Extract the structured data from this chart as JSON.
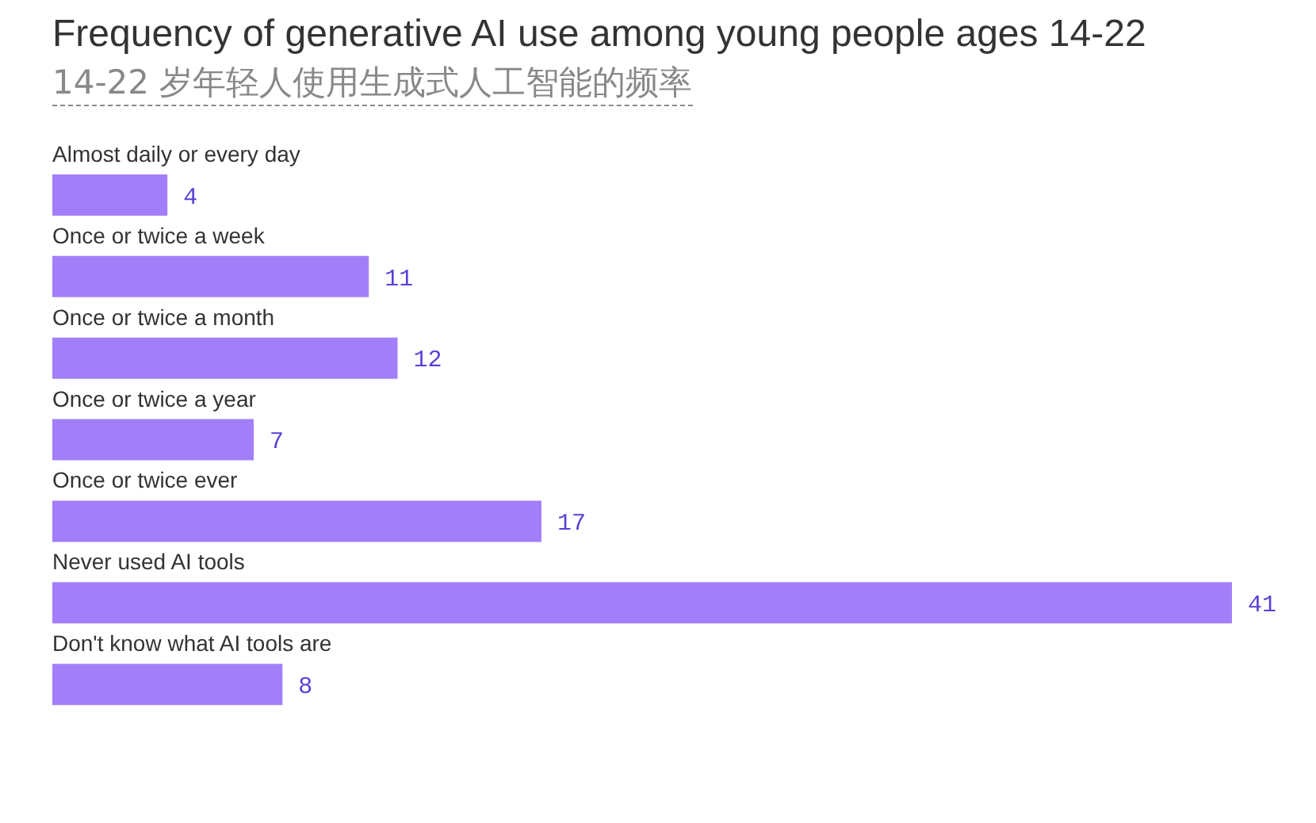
{
  "chart_data": {
    "type": "bar",
    "orientation": "horizontal",
    "title": "Frequency of generative AI use among young people ages 14-22",
    "subtitle": "14-22 岁年轻人使用生成式人工智能的频率",
    "categories": [
      "Almost daily or every day",
      "Once or twice a week",
      "Once or twice a month",
      "Once or twice a year",
      "Once or twice ever",
      "Never used AI tools",
      "Don't know what AI tools are"
    ],
    "values": [
      4,
      11,
      12,
      7,
      17,
      41,
      8
    ],
    "color": "#a27ff9",
    "data_labels": true,
    "grid": false,
    "legend": false
  }
}
